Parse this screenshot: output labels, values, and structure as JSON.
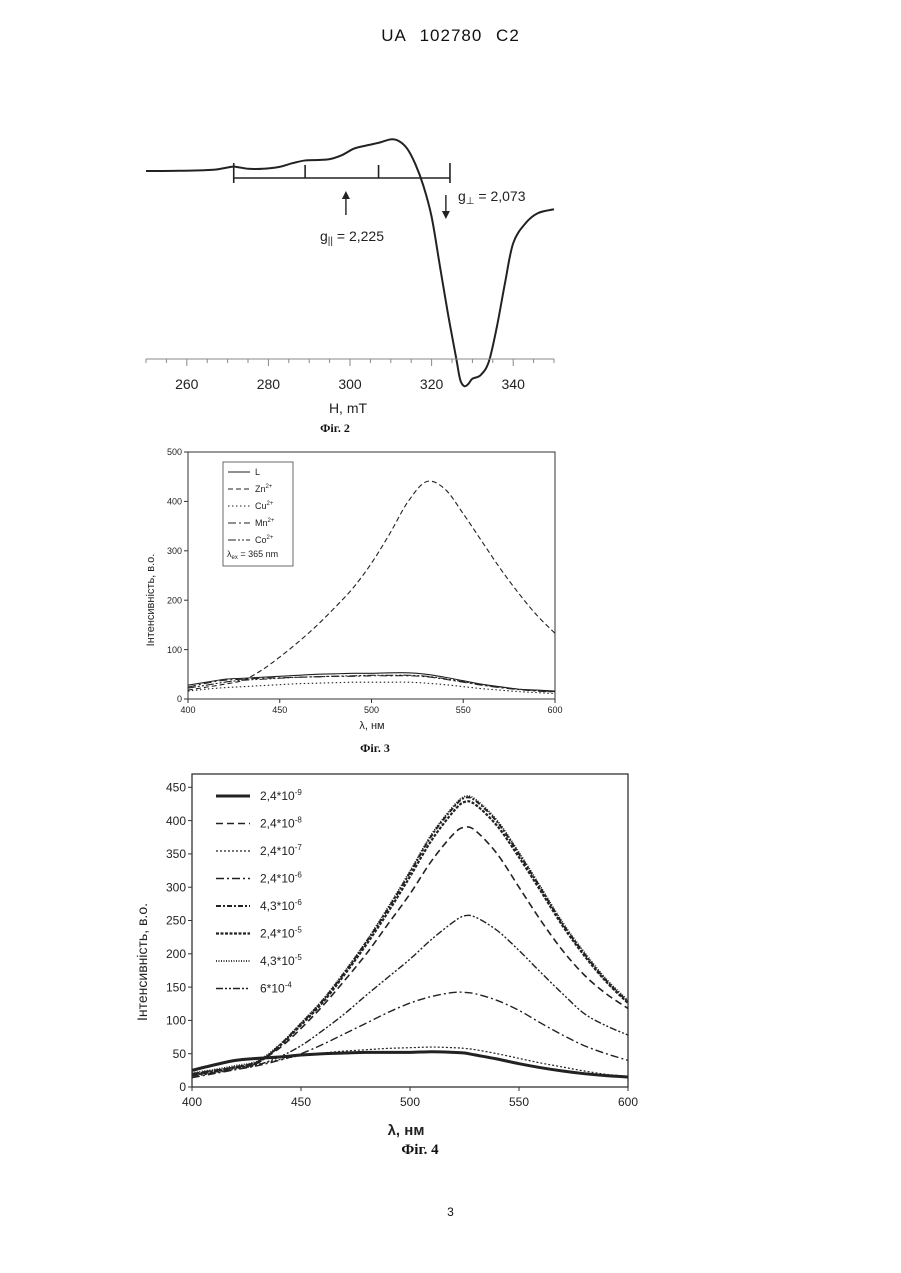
{
  "page": {
    "header": "UA 102780 C2",
    "page_number": "3"
  },
  "fig2": {
    "caption": "Фіг. 2",
    "xlabel": "H, mT",
    "g_parallel": "g",
    "g_parallel_sub": "||",
    "g_parallel_value": " = 2,225",
    "g_perp": "g",
    "g_perp_sub": "⊥",
    "g_perp_value": " = 2,073"
  },
  "fig3": {
    "caption": "Фіг. 3",
    "xlabel": "λ, нм",
    "ylabel": "Інтенсивність, в.о.",
    "legend": [
      {
        "label": "L",
        "dash": "none"
      },
      {
        "label": "Zn",
        "sup": "2+",
        "dash": "5,3"
      },
      {
        "label": "Cu",
        "sup": "2+",
        "dash": "1.5,2.5"
      },
      {
        "label": "Mn",
        "sup": "2+",
        "dash": "8,3,2,3"
      },
      {
        "label": "Co",
        "sup": "2+",
        "dash": "8,2,2,2,2,2"
      }
    ],
    "excitation_label": "λ",
    "excitation_sub": "ex",
    "excitation_value": " = 365 nm"
  },
  "fig4": {
    "caption": "Фіг. 4",
    "xlabel": "λ, нм",
    "ylabel": "Інтенсивність, в.о.",
    "legend": [
      {
        "base": "2,4*10",
        "exp": "-9",
        "dash": "none",
        "width": 3
      },
      {
        "base": "2,4*10",
        "exp": "-8",
        "dash": "7,4",
        "width": 1.6
      },
      {
        "base": "2,4*10",
        "exp": "-7",
        "dash": "2,2",
        "width": 1.2
      },
      {
        "base": "2,4*10",
        "exp": "-6",
        "dash": "8,3,2,3",
        "width": 1.4
      },
      {
        "base": "4,3*10",
        "exp": "-6",
        "dash": "5,2,2,2",
        "width": 2
      },
      {
        "base": "2,4*10",
        "exp": "-5",
        "dash": "3,1.5",
        "width": 2.2
      },
      {
        "base": "4,3*10",
        "exp": "-5",
        "dash": "1,1.5",
        "width": 1.8
      },
      {
        "base": "6*10",
        "exp": "-4",
        "dash": "7,2,2,2,2,2",
        "width": 1.4
      }
    ]
  },
  "chart_data": [
    {
      "type": "line",
      "id": "fig2",
      "xlabel": "H, mT",
      "ylabel": "",
      "xlim": [
        250,
        350
      ],
      "xticks": [
        260,
        280,
        300,
        320,
        340
      ],
      "series": [
        {
          "x": [
            250,
            254,
            258,
            262,
            266,
            268,
            270,
            271.5,
            273,
            275,
            277,
            280,
            283,
            286,
            289,
            292,
            295,
            298,
            301,
            304,
            307,
            310,
            312,
            314,
            316,
            318,
            320,
            322,
            324,
            326,
            327,
            328,
            329,
            330,
            332,
            334,
            336,
            338,
            340,
            343,
            346,
            350
          ],
          "y": [
            0.94,
            0.94,
            0.945,
            0.95,
            0.965,
            0.985,
            1.02,
            1.04,
            1.02,
            0.99,
            0.985,
            1.0,
            1.04,
            1.12,
            1.18,
            1.19,
            1.21,
            1.3,
            1.45,
            1.52,
            1.58,
            1.66,
            1.62,
            1.45,
            1.1,
            0.6,
            -0.1,
            -1.2,
            -2.3,
            -3.3,
            -3.8,
            -3.95,
            -3.9,
            -3.78,
            -3.7,
            -3.4,
            -2.6,
            -1.6,
            -0.7,
            -0.25,
            -0.02,
            0.07
          ]
        }
      ],
      "annotations": [
        {
          "text": "g|| = 2,225",
          "x": 299
        },
        {
          "text": "g⊥ = 2,073",
          "x": 323.5
        }
      ],
      "stick_marks_x": [
        271.5,
        289,
        307,
        324.5
      ]
    },
    {
      "type": "line",
      "id": "fig3",
      "xlabel": "λ, нм",
      "ylabel": "Інтенсивність, в.о.",
      "xlim": [
        400,
        600
      ],
      "ylim": [
        0,
        500
      ],
      "xticks": [
        400,
        450,
        500,
        550,
        600
      ],
      "yticks": [
        0,
        100,
        200,
        300,
        400,
        500
      ],
      "x": [
        400,
        410,
        420,
        430,
        440,
        450,
        460,
        470,
        480,
        490,
        500,
        510,
        520,
        530,
        540,
        550,
        560,
        570,
        580,
        590,
        600
      ],
      "series": [
        {
          "name": "L",
          "y": [
            28,
            34,
            40,
            42,
            44,
            46,
            48,
            50,
            51,
            52,
            52,
            53,
            53,
            50,
            44,
            37,
            30,
            25,
            20,
            18,
            16
          ]
        },
        {
          "name": "Zn2+",
          "y": [
            18,
            24,
            30,
            38,
            58,
            85,
            115,
            148,
            185,
            225,
            275,
            335,
            400,
            440,
            425,
            375,
            320,
            265,
            215,
            170,
            133
          ]
        },
        {
          "name": "Cu2+",
          "y": [
            16,
            20,
            23,
            25,
            27,
            29,
            31,
            32,
            33,
            34,
            34,
            34,
            34,
            32,
            29,
            25,
            21,
            18,
            15,
            13,
            11
          ]
        },
        {
          "name": "Mn2+",
          "y": [
            24,
            32,
            38,
            40,
            42,
            43,
            44,
            45,
            46,
            46,
            47,
            47,
            47,
            45,
            40,
            34,
            28,
            23,
            19,
            16,
            14
          ]
        },
        {
          "name": "Co2+",
          "y": [
            22,
            28,
            34,
            38,
            40,
            42,
            44,
            45,
            46,
            47,
            48,
            48,
            48,
            46,
            41,
            35,
            29,
            24,
            20,
            17,
            15
          ]
        }
      ],
      "legend_position": "top-left",
      "annotation": "λex = 365 nm"
    },
    {
      "type": "line",
      "id": "fig4",
      "xlabel": "λ, нм",
      "ylabel": "Інтенсивність, в.о.",
      "xlim": [
        400,
        600
      ],
      "ylim": [
        0,
        470
      ],
      "xticks": [
        400,
        450,
        500,
        550,
        600
      ],
      "yticks": [
        0,
        50,
        100,
        150,
        200,
        250,
        300,
        350,
        400,
        450
      ],
      "x": [
        400,
        410,
        420,
        430,
        440,
        450,
        460,
        470,
        480,
        490,
        500,
        510,
        520,
        525,
        530,
        540,
        550,
        560,
        570,
        580,
        590,
        600
      ],
      "series": [
        {
          "name": "2,4*10-9",
          "y": [
            25,
            33,
            40,
            43,
            45,
            48,
            50,
            51,
            52,
            52,
            52,
            53,
            52,
            51,
            48,
            42,
            35,
            29,
            24,
            20,
            17,
            15
          ]
        },
        {
          "name": "2,4*10-8",
          "y": [
            20,
            25,
            30,
            38,
            58,
            88,
            122,
            160,
            200,
            245,
            290,
            340,
            380,
            390,
            385,
            350,
            300,
            250,
            205,
            168,
            140,
            118
          ]
        },
        {
          "name": "2,4*10-7",
          "y": [
            17,
            22,
            28,
            34,
            41,
            47,
            51,
            54,
            56,
            58,
            59,
            60,
            59,
            58,
            56,
            50,
            43,
            36,
            30,
            24,
            19,
            16
          ]
        },
        {
          "name": "2,4*10-6",
          "y": [
            14,
            20,
            26,
            32,
            40,
            50,
            64,
            80,
            96,
            112,
            126,
            136,
            142,
            142,
            140,
            130,
            115,
            96,
            78,
            62,
            50,
            40
          ]
        },
        {
          "name": "4,3*10-6",
          "y": [
            18,
            23,
            29,
            36,
            62,
            95,
            130,
            172,
            218,
            268,
            322,
            378,
            420,
            434,
            430,
            398,
            350,
            298,
            245,
            200,
            160,
            128
          ]
        },
        {
          "name": "2,4*10-5",
          "y": [
            19,
            24,
            30,
            37,
            61,
            93,
            127,
            169,
            214,
            263,
            316,
            371,
            414,
            428,
            424,
            392,
            345,
            294,
            242,
            197,
            158,
            126
          ]
        },
        {
          "name": "4,3*10-5",
          "y": [
            21,
            26,
            32,
            39,
            63,
            96,
            131,
            173,
            219,
            270,
            324,
            380,
            422,
            436,
            432,
            400,
            352,
            300,
            247,
            202,
            162,
            130
          ]
        },
        {
          "name": "6*10-4",
          "y": [
            16,
            21,
            27,
            33,
            45,
            62,
            85,
            110,
            138,
            165,
            192,
            222,
            248,
            257,
            255,
            235,
            205,
            172,
            140,
            110,
            92,
            78
          ]
        }
      ],
      "legend_position": "top-left"
    }
  ]
}
